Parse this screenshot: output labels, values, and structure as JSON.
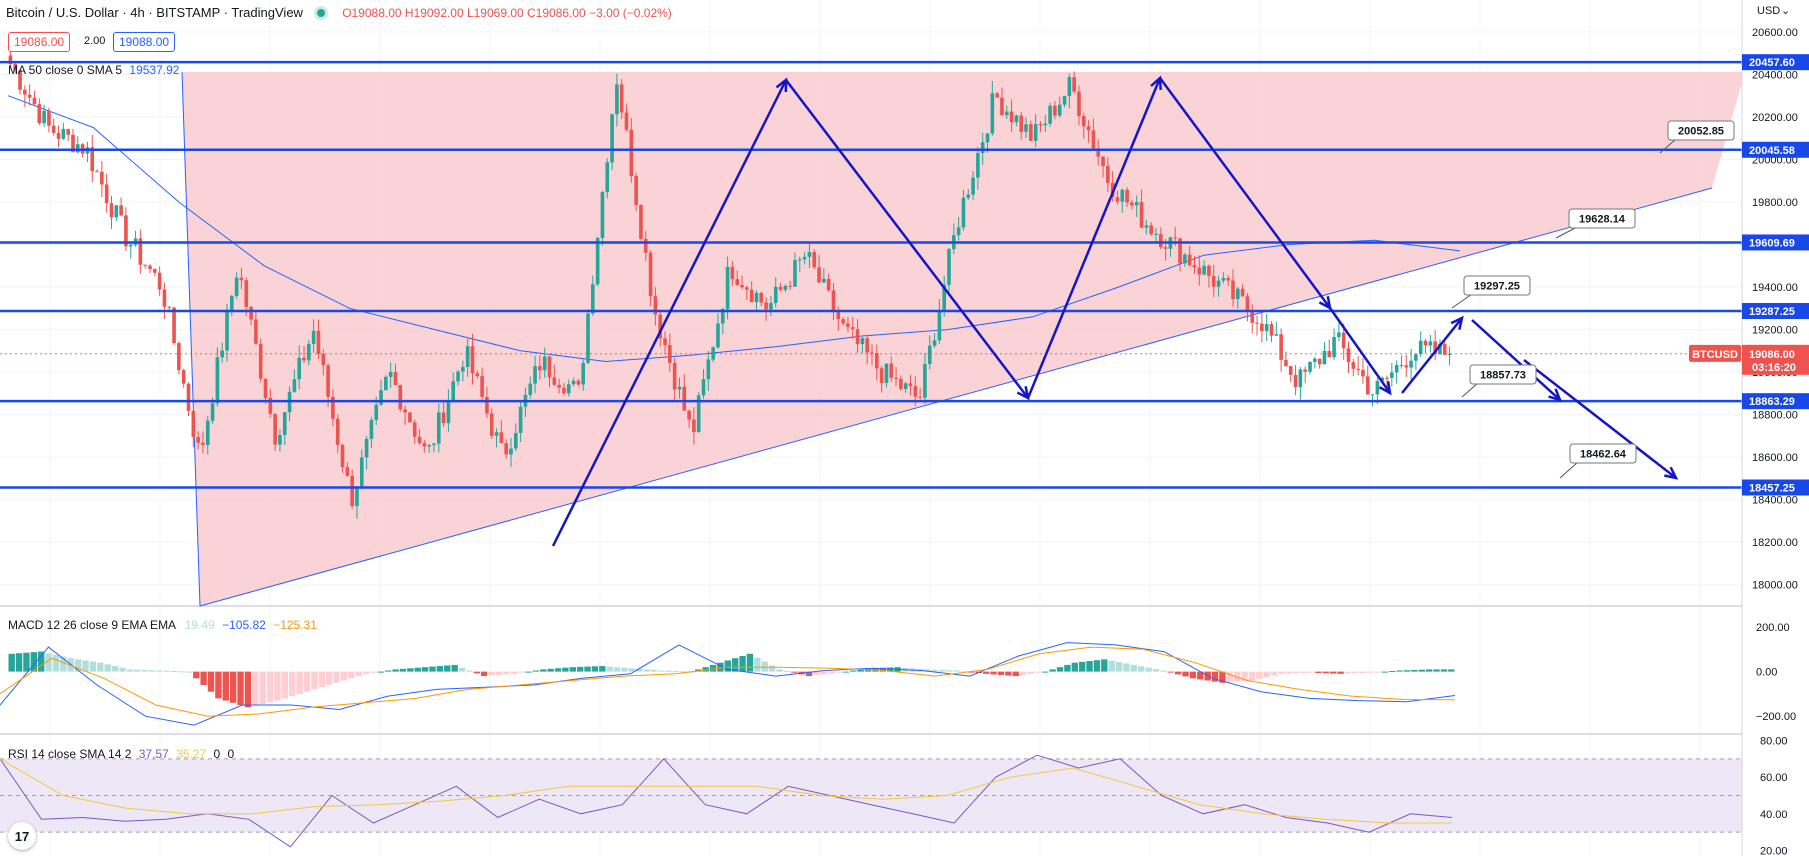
{
  "header": {
    "symbol_title": "Bitcoin / U.S. Dollar · 4h · BITSTAMP · TradingView",
    "ohlc": "O19088.00 H19092.00 L19069.00 C19086.00 −3.00 (−0.02%)",
    "bid": "19086.00",
    "spread": "2.00",
    "ask": "19088.00",
    "ma_label": "MA 50 close 0 SMA 5",
    "ma_value": "19537.92"
  },
  "macd_label": {
    "name": "MACD 12 26 close 9 EMA EMA",
    "v1": "19.49",
    "v2": "−105.82",
    "v3": "−125.31"
  },
  "rsi_label": {
    "name": "RSI 14 close SMA 14 2",
    "v1": "37.57",
    "v2": "35.27",
    "v3": "0",
    "v4": "0"
  },
  "logo_text": "17",
  "currency": "USD",
  "symbol_tag": "BTCUSD",
  "countdown": "03:16:20",
  "colors": {
    "up": "#26a69a",
    "down": "#ef5350",
    "level": "#1848e8",
    "arrow": "#1515c8",
    "triangle": "#f8c8cc",
    "ma": "#2962ff",
    "macd": "#2962ff",
    "signal": "#ff9800",
    "rsi": "#7e57c2",
    "rsi_ma": "#f5c842",
    "rsi_band": "#ede7f6"
  },
  "chart_data": [
    {
      "type": "candlestick",
      "title": "Bitcoin / U.S. Dollar · 4h · BITSTAMP · TradingView",
      "ylabel": "USD",
      "ylim": [
        17900,
        20750
      ],
      "y_ticks": [
        "18000.00",
        "18200.00",
        "18400.00",
        "18600.00",
        "18800.00",
        "19000.00",
        "19200.00",
        "19400.00",
        "19600.00",
        "19800.00",
        "20000.00",
        "20200.00",
        "20400.00",
        "20600.00"
      ],
      "last_price": "19086.00",
      "horizontal_levels": [
        {
          "label": "20457.60",
          "value": 20457.6
        },
        {
          "label": "20045.58",
          "value": 20045.58
        },
        {
          "label": "19609.69",
          "value": 19609.69
        },
        {
          "label": "19287.25",
          "value": 19287.25
        },
        {
          "label": "18863.29",
          "value": 18863.29
        },
        {
          "label": "18457.25",
          "value": 18457.25
        }
      ],
      "callouts": [
        "20052.85",
        "19628.14",
        "19297.25",
        "18857.73",
        "18462.64"
      ],
      "series": [
        {
          "name": "BTCUSD",
          "close_path": [
            20450,
            20150,
            20050,
            19650,
            19400,
            18600,
            19500,
            18700,
            19200,
            18400,
            19000,
            18600,
            19100,
            18600,
            19050,
            18900,
            20400,
            19300,
            18700,
            19500,
            19300,
            19550,
            19200,
            19000,
            18870,
            19700,
            20300,
            20100,
            20350,
            19900,
            19700,
            19550,
            19400,
            19250,
            18950,
            19150,
            18900,
            19100,
            19086
          ]
        },
        {
          "name": "MA 50 close 0 SMA 5",
          "values": [
            20300,
            20150,
            19800,
            19500,
            19300,
            19200,
            19100,
            19050,
            19080,
            19120,
            19170,
            19200,
            19260,
            19400,
            19550,
            19600,
            19620,
            19570
          ]
        }
      ]
    },
    {
      "type": "bar",
      "title": "MACD 12 26 close 9 EMA EMA",
      "ylim": [
        -280,
        290
      ],
      "y_ticks": [
        "200.00",
        "0.00",
        "−200.00"
      ],
      "series": [
        {
          "name": "histogram",
          "values": [
            80,
            90,
            60,
            40,
            10,
            5,
            0,
            -120,
            -160,
            -130,
            -90,
            -50,
            -10,
            10,
            20,
            30,
            -20,
            -10,
            10,
            20,
            25,
            15,
            5,
            0,
            40,
            80,
            10,
            -20,
            -5,
            15,
            20,
            10,
            5,
            -10,
            -20,
            0,
            40,
            55,
            30,
            5,
            -30,
            -50,
            -40,
            -10,
            -5,
            -10,
            -5,
            5,
            10
          ]
        },
        {
          "name": "macd",
          "values": [
            -150,
            110,
            -60,
            -200,
            -240,
            -150,
            -150,
            -170,
            -110,
            -80,
            -70,
            -60,
            -30,
            -10,
            120,
            10,
            -20,
            5,
            15,
            5,
            -20,
            70,
            130,
            120,
            90,
            -30,
            -90,
            -120,
            -130,
            -135,
            -107
          ]
        },
        {
          "name": "signal",
          "values": [
            -100,
            60,
            -30,
            -150,
            -200,
            -190,
            -160,
            -140,
            -120,
            -80,
            -60,
            -40,
            -20,
            -10,
            20,
            20,
            15,
            5,
            -20,
            10,
            80,
            110,
            100,
            40,
            -40,
            -80,
            -110,
            -125,
            -126
          ]
        }
      ]
    },
    {
      "type": "line",
      "title": "RSI 14 close SMA 14 2",
      "ylim": [
        17,
        83
      ],
      "y_ticks": [
        "80.00",
        "60.00",
        "40.00",
        "20.00"
      ],
      "series": [
        {
          "name": "RSI",
          "values": [
            70,
            37,
            38,
            36,
            37,
            40,
            37,
            22,
            50,
            35,
            45,
            55,
            38,
            48,
            40,
            45,
            70,
            45,
            40,
            55,
            50,
            45,
            40,
            35,
            60,
            72,
            65,
            70,
            50,
            40,
            45,
            38,
            35,
            30,
            40,
            38
          ]
        },
        {
          "name": "SMA",
          "values": [
            70,
            50,
            43,
            40,
            40,
            44,
            45,
            47,
            50,
            55,
            55,
            55,
            55,
            50,
            48,
            50,
            60,
            65,
            55,
            45,
            40,
            37,
            35,
            35
          ]
        }
      ]
    }
  ]
}
